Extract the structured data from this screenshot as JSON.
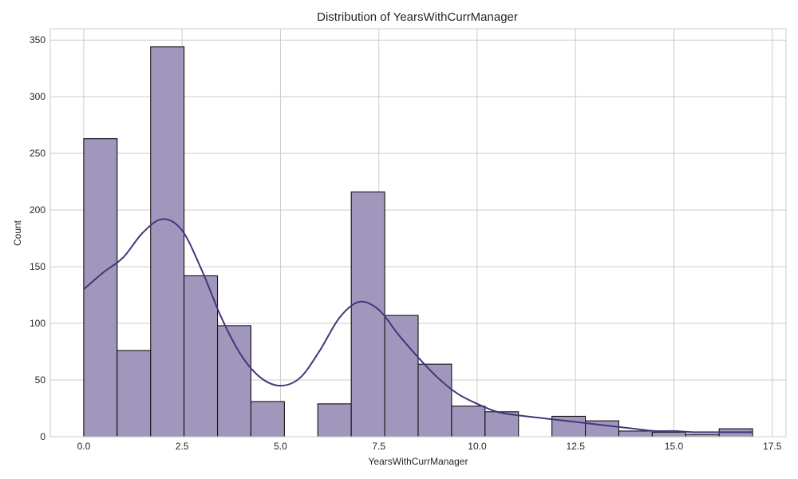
{
  "chart_data": {
    "type": "bar",
    "title": "Distribution of YearsWithCurrManager",
    "xlabel": "YearsWithCurrManager",
    "ylabel": "Count",
    "xlim": [
      -0.85,
      17.85
    ],
    "ylim": [
      0,
      360
    ],
    "xticks": [
      "0.0",
      "2.5",
      "5.0",
      "7.5",
      "10.0",
      "12.5",
      "15.0",
      "17.5"
    ],
    "xtick_values": [
      0,
      2.5,
      5,
      7.5,
      10,
      12.5,
      15,
      17.5
    ],
    "yticks": [
      "0",
      "50",
      "100",
      "150",
      "200",
      "250",
      "300",
      "350"
    ],
    "ytick_values": [
      0,
      50,
      100,
      150,
      200,
      250,
      300,
      350
    ],
    "grid": true,
    "bin_edges": [
      0,
      0.85,
      1.7,
      2.55,
      3.4,
      4.25,
      5.1,
      5.95,
      6.8,
      7.65,
      8.5,
      9.35,
      10.2,
      11.05,
      11.9,
      12.75,
      13.6,
      14.45,
      15.3,
      16.15,
      17.0
    ],
    "counts": [
      263,
      76,
      344,
      142,
      98,
      31,
      0,
      29,
      216,
      107,
      64,
      27,
      22,
      0,
      18,
      14,
      5,
      4,
      2,
      7
    ],
    "kde": {
      "x": [
        0,
        0.5,
        1,
        1.5,
        2,
        2.5,
        3,
        3.5,
        4,
        4.5,
        5,
        5.5,
        6,
        6.5,
        7,
        7.5,
        8,
        8.5,
        9,
        9.5,
        10,
        10.5,
        11,
        11.5,
        12,
        12.5,
        13,
        13.5,
        14,
        14.5,
        15,
        15.5,
        16,
        16.5,
        17
      ],
      "y": [
        130,
        145,
        158,
        180,
        192,
        182,
        147,
        105,
        72,
        52,
        45,
        52,
        76,
        105,
        119,
        112,
        90,
        70,
        52,
        38,
        29,
        22,
        19,
        17,
        15,
        13,
        11,
        9,
        7,
        5,
        5,
        4,
        4,
        4,
        4
      ]
    },
    "colors": {
      "bar_fill": "#a197bd",
      "bar_edge": "#111111",
      "kde_line": "#45357a"
    }
  }
}
